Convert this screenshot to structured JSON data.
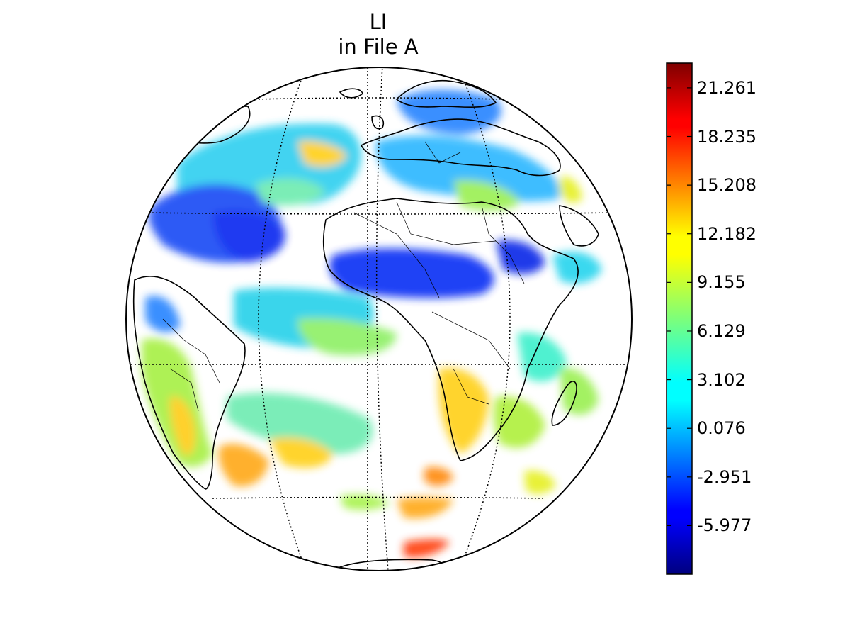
{
  "figure": {
    "title_line1": "LI",
    "title_line2": "in File A"
  },
  "map": {
    "projection": "geostationary orthographic disk",
    "graticule_style": "dotted",
    "coastlines": true,
    "country_borders": true
  },
  "colorbar": {
    "colormap": "jet",
    "min": -9.0,
    "max": 22.8,
    "tick_labels": [
      "21.261",
      "18.235",
      "15.208",
      "12.182",
      "9.155",
      "6.129",
      "3.102",
      "0.076",
      "-2.951",
      "-5.977"
    ],
    "tick_values": [
      21.261,
      18.235,
      15.208,
      12.182,
      9.155,
      6.129,
      3.102,
      0.076,
      -2.951,
      -5.977
    ]
  },
  "colors": {
    "jet_dark_blue": "#00007f",
    "jet_blue": "#0000ff",
    "jet_cyan": "#00ffff",
    "jet_yellow": "#ffff00",
    "jet_red": "#ff0000",
    "jet_dark_red": "#7f0000"
  }
}
